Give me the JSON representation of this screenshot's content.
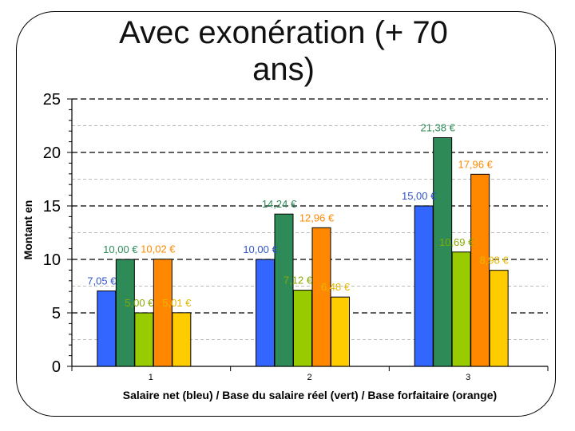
{
  "slide": {
    "title": "Avec exonération (+ 70 ans)"
  },
  "chart_data": {
    "type": "bar",
    "title": "Avec exonération (+ 70 ans)",
    "xlabel": "Salaire net (bleu) / Base du salaire réel (vert) / Base forfaitaire (orange)",
    "ylabel": "Montant en",
    "ylim": [
      0,
      25
    ],
    "yticks": [
      "0",
      "5",
      "10",
      "15",
      "20",
      "25"
    ],
    "grid": true,
    "categories": [
      "1",
      "2",
      "3"
    ],
    "groups": [
      {
        "category": "1",
        "bars": [
          {
            "value": 7.05,
            "label": "7,05 €",
            "color": "#3366ff",
            "label_color": "#3355cc"
          },
          {
            "value": 10.0,
            "label": "10,00 €",
            "color": "#2e8b57",
            "label_color": "#2e8b57"
          },
          {
            "value": 5.0,
            "label": "5,00 €",
            "color": "#99cc00",
            "label_color": "#88aa00"
          },
          {
            "value": 10.02,
            "label": "10,02 €",
            "color": "#ff8800",
            "label_color": "#ff8800"
          },
          {
            "value": 5.01,
            "label": "5,01 €",
            "color": "#ffcc00",
            "label_color": "#e6b800"
          }
        ]
      },
      {
        "category": "2",
        "bars": [
          {
            "value": 10.0,
            "label": "10,00 €",
            "color": "#3366ff",
            "label_color": "#3355cc"
          },
          {
            "value": 14.24,
            "label": "14,24 €",
            "color": "#2e8b57",
            "label_color": "#2e8b57"
          },
          {
            "value": 7.12,
            "label": "7,12 €",
            "color": "#99cc00",
            "label_color": "#88aa00"
          },
          {
            "value": 12.96,
            "label": "12,96 €",
            "color": "#ff8800",
            "label_color": "#ff8800"
          },
          {
            "value": 6.48,
            "label": "6,48 €",
            "color": "#ffcc00",
            "label_color": "#e6b800"
          }
        ]
      },
      {
        "category": "3",
        "bars": [
          {
            "value": 15.0,
            "label": "15,00 €",
            "color": "#3366ff",
            "label_color": "#3355cc"
          },
          {
            "value": 21.38,
            "label": "21,38 €",
            "color": "#2e8b57",
            "label_color": "#2e8b57"
          },
          {
            "value": 10.69,
            "label": "10,69 €",
            "color": "#99cc00",
            "label_color": "#88aa00"
          },
          {
            "value": 17.96,
            "label": "17,96 €",
            "color": "#ff8800",
            "label_color": "#ff8800"
          },
          {
            "value": 8.98,
            "label": "8,98 €",
            "color": "#ffcc00",
            "label_color": "#e6b800"
          }
        ]
      }
    ]
  }
}
